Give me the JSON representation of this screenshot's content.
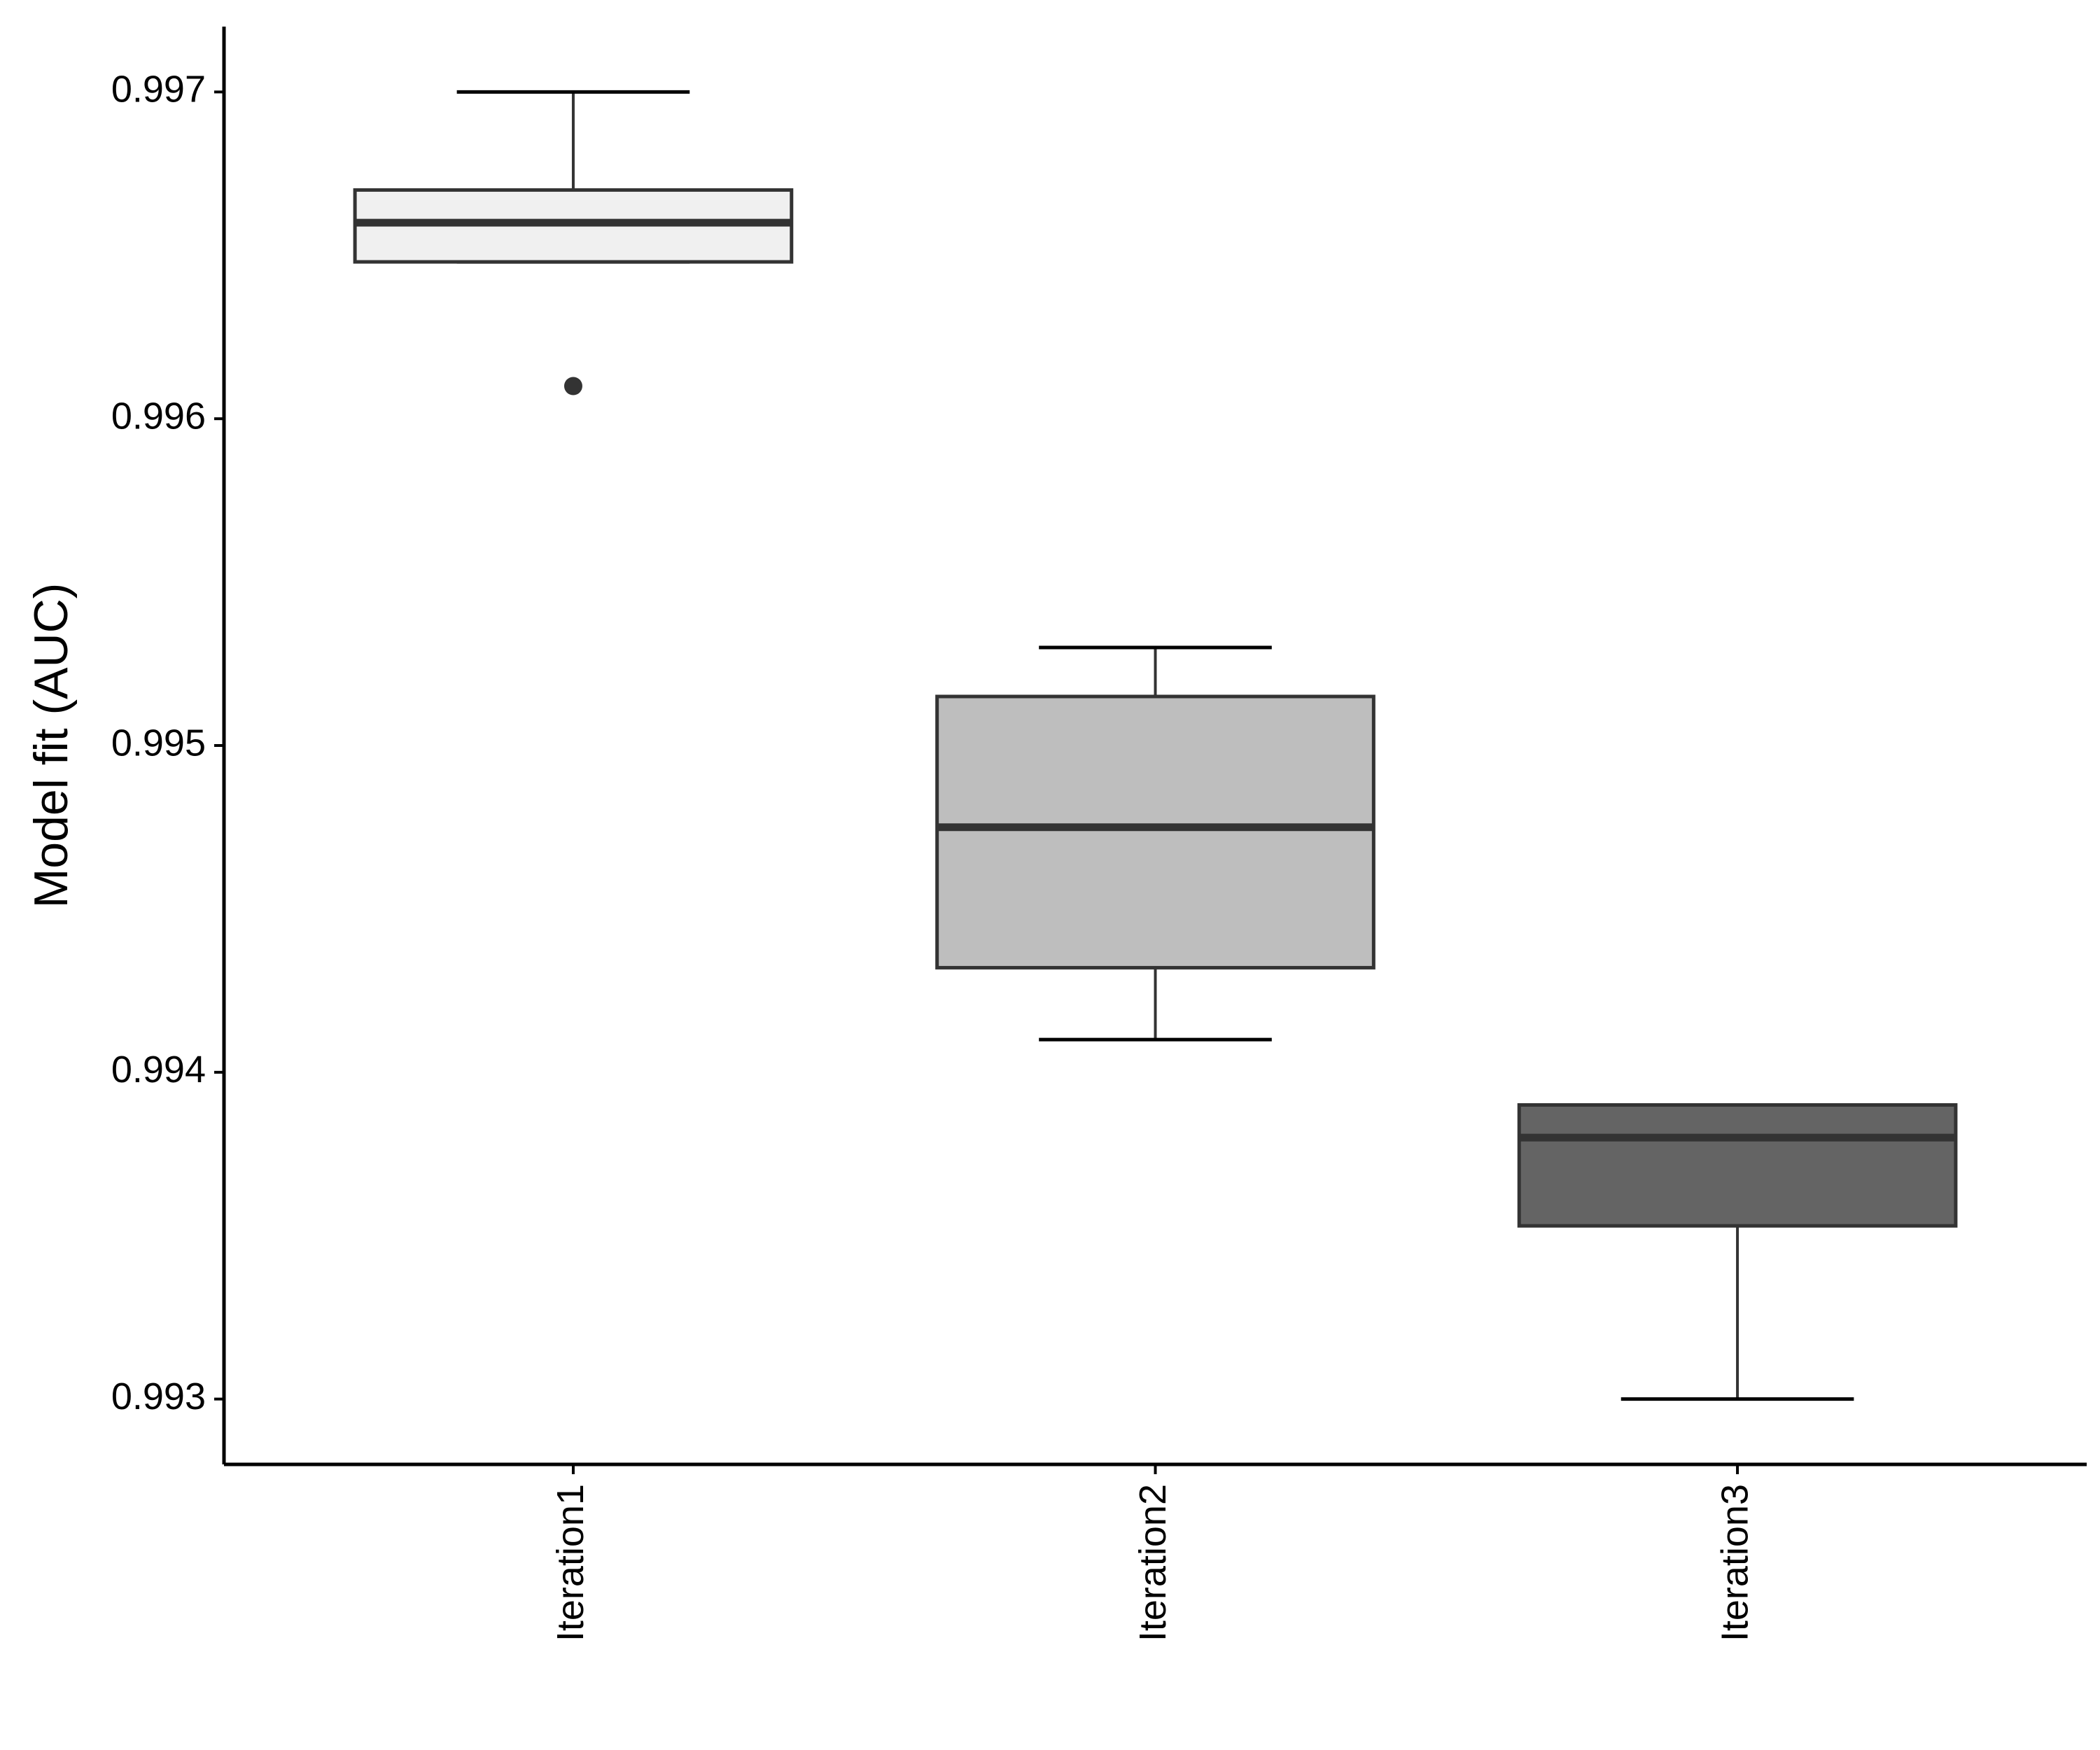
{
  "chart_data": {
    "type": "boxplot",
    "y_label": "Model fit (AUC)",
    "categories": [
      "Iteration1",
      "Iteration2",
      "Iteration3"
    ],
    "boxes": [
      {
        "min": 0.99648,
        "q1": 0.99648,
        "median": 0.9966,
        "q3": 0.9967,
        "max": 0.997,
        "outliers": [
          0.9961
        ]
      },
      {
        "min": 0.9941,
        "q1": 0.99432,
        "median": 0.99475,
        "q3": 0.99515,
        "max": 0.9953,
        "outliers": []
      },
      {
        "min": 0.993,
        "q1": 0.99353,
        "median": 0.9938,
        "q3": 0.9939,
        "max": 0.9939,
        "outliers": []
      }
    ],
    "colors": [
      "#f0f0f0",
      "#bebebe",
      "#646464"
    ],
    "ylim": [
      0.9928,
      0.9972
    ],
    "yticks": [
      0.993,
      0.994,
      0.995,
      0.996,
      0.997
    ],
    "grid": false
  }
}
